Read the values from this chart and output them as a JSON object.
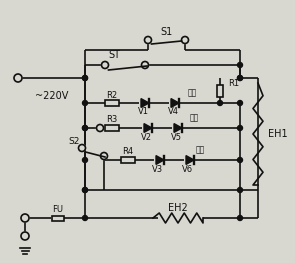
{
  "bg_color": "#d8d8d0",
  "line_color": "#111111",
  "components": {
    "voltage_label": "~220V",
    "R1_label": "R1",
    "R2_label": "R2",
    "R3_label": "R3",
    "R4_label": "R4",
    "V1_label": "V1",
    "V2_label": "V2",
    "V3_label": "V3",
    "V4_label": "V4",
    "V5_label": "V5",
    "V6_label": "V6",
    "S1_label": "S1",
    "ST_label": "ST",
    "S2_label": "S2",
    "FU_label": "FU",
    "EH1_label": "EH1",
    "EH2_label": "EH2",
    "baowen_label": "保温",
    "zhutang_label": "煌汤",
    "zhufan_label": "煮饭"
  }
}
